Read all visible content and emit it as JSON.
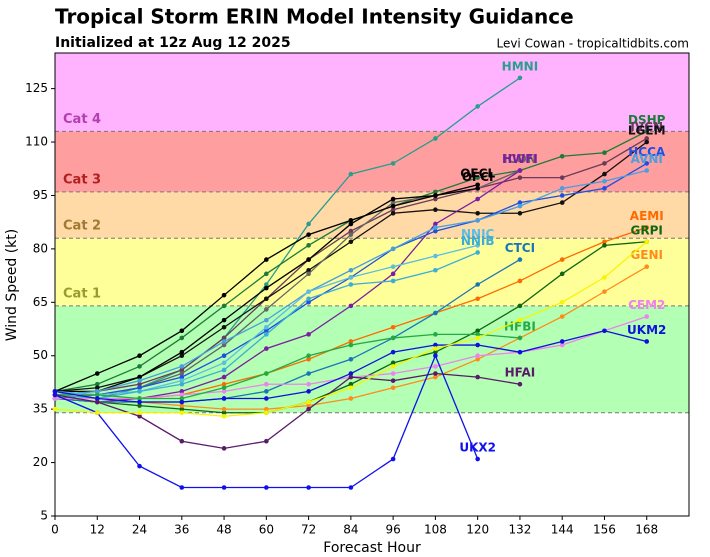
{
  "chart_data": {
    "type": "line",
    "title": "Tropical Storm ERIN Model Intensity Guidance",
    "subtitle": "Initialized at 12z Aug 12 2025",
    "credit": "Levi Cowan - tropicaltidbits.com",
    "x_label": "Forecast Hour",
    "y_label": "Wind Speed (kt)",
    "xlim": [
      0,
      180
    ],
    "ylim": [
      5,
      135
    ],
    "xticks": [
      0,
      12,
      24,
      36,
      48,
      60,
      72,
      84,
      96,
      108,
      120,
      132,
      144,
      156,
      168
    ],
    "yticks": [
      5,
      20,
      35,
      50,
      65,
      80,
      95,
      110,
      125
    ],
    "bands": [
      {
        "range": [
          34,
          64
        ],
        "color": "#b3ffb3"
      },
      {
        "label": "Cat 1",
        "range": [
          64,
          83
        ],
        "color": "#ffff99",
        "label_color": "#9a9a30"
      },
      {
        "label": "Cat 2",
        "range": [
          83,
          96
        ],
        "color": "#ffd9a6",
        "label_color": "#a07a30"
      },
      {
        "label": "Cat 3",
        "range": [
          96,
          113
        ],
        "color": "#ff9e9e",
        "label_color": "#b02020"
      },
      {
        "label": "Cat 4",
        "range": [
          113,
          135
        ],
        "color": "#ffb3ff",
        "label_color": "#b040b0"
      }
    ],
    "x": [
      0,
      12,
      24,
      36,
      48,
      60,
      72,
      84,
      96,
      108,
      120,
      132,
      144,
      156,
      168
    ],
    "series": [
      {
        "name": "HMNI",
        "color": "#2a9d8f",
        "values": [
          40,
          38,
          41,
          46,
          55,
          70,
          87,
          101,
          104,
          111,
          120,
          128,
          null,
          null,
          null
        ]
      },
      {
        "name": "DSHP",
        "color": "#1e7a3a",
        "values": [
          40,
          42,
          47,
          55,
          64,
          73,
          81,
          88,
          92,
          96,
          100,
          102,
          106,
          107,
          113
        ]
      },
      {
        "name": "IVCN",
        "color": "#6a3a5a",
        "values": [
          39,
          40,
          42,
          46,
          55,
          66,
          77,
          85,
          91,
          94,
          97,
          100,
          100,
          104,
          111
        ]
      },
      {
        "name": "LGEM",
        "color": "#111111",
        "values": [
          40,
          41,
          44,
          50,
          58,
          66,
          74,
          82,
          90,
          91,
          90,
          90,
          93,
          101,
          110
        ]
      },
      {
        "name": "ICON",
        "color": "#666666",
        "values": [
          38,
          39,
          41,
          45,
          53,
          63,
          73,
          84,
          93,
          95,
          97,
          102,
          null,
          null,
          null
        ]
      },
      {
        "name": "HWFI",
        "color": "#7a1fa2",
        "values": [
          38,
          37,
          38,
          40,
          44,
          52,
          56,
          64,
          73,
          87,
          94,
          102,
          null,
          null,
          null
        ]
      },
      {
        "name": "OFCL",
        "color": "#000000",
        "values": [
          40,
          45,
          50,
          57,
          67,
          77,
          84,
          88,
          92,
          95,
          98,
          null,
          null,
          null,
          null
        ]
      },
      {
        "name": "OFCI",
        "color": "#000000",
        "values": [
          40,
          40,
          44,
          51,
          60,
          69,
          77,
          87,
          94,
          95,
          97,
          null,
          null,
          null,
          null
        ]
      },
      {
        "name": "HCCA",
        "color": "#1f4fe0",
        "values": [
          40,
          39,
          41,
          44,
          50,
          57,
          65,
          72,
          80,
          85,
          88,
          93,
          95,
          97,
          104
        ]
      },
      {
        "name": "AVNI",
        "color": "#4a9fdf",
        "values": [
          39,
          40,
          43,
          47,
          54,
          60,
          68,
          74,
          80,
          86,
          88,
          92,
          97,
          99,
          102
        ]
      },
      {
        "name": "AEMI",
        "color": "#ff6a00",
        "values": [
          40,
          38,
          38,
          39,
          42,
          45,
          49,
          54,
          58,
          62,
          66,
          71,
          77,
          82,
          86
        ]
      },
      {
        "name": "GRPI",
        "color": "#116611",
        "values": [
          38,
          37,
          36,
          35,
          34,
          34,
          37,
          42,
          48,
          51,
          57,
          64,
          73,
          81,
          82
        ]
      },
      {
        "name": "GENI",
        "color": "#ff8c1a",
        "values": [
          38,
          37,
          37,
          36,
          35,
          35,
          36,
          38,
          41,
          44,
          49,
          55,
          61,
          68,
          75
        ]
      },
      {
        "name": "NNIC",
        "color": "#5bbde0",
        "values": [
          40,
          39,
          40,
          43,
          48,
          58,
          68,
          72,
          75,
          78,
          81,
          null,
          null,
          null,
          null
        ]
      },
      {
        "name": "NNIB",
        "color": "#3aaed8",
        "values": [
          39,
          38,
          40,
          42,
          46,
          56,
          66,
          70,
          71,
          74,
          79,
          null,
          null,
          null,
          null
        ]
      },
      {
        "name": "CTCI",
        "color": "#1a75b8",
        "values": [
          38,
          37,
          37,
          37,
          38,
          40,
          45,
          49,
          55,
          62,
          70,
          77,
          null,
          null,
          null
        ]
      },
      {
        "name": "CEM2",
        "color": "#ee82ee",
        "values": [
          38,
          38,
          38,
          39,
          40,
          42,
          42,
          44,
          45,
          47,
          50,
          51,
          53,
          57,
          61
        ]
      },
      {
        "name": "HFBI",
        "color": "#22aa44",
        "values": [
          39,
          39,
          38,
          38,
          41,
          45,
          50,
          53,
          55,
          56,
          56,
          55,
          null,
          null,
          null
        ]
      },
      {
        "name": "UKM2",
        "color": "#1010dd",
        "values": [
          40,
          38,
          37,
          37,
          38,
          38,
          40,
          45,
          51,
          53,
          53,
          51,
          54,
          57,
          54
        ]
      },
      {
        "name": "HFAI",
        "color": "#5a1a6a",
        "values": [
          39,
          37,
          33,
          26,
          24,
          26,
          35,
          44,
          43,
          45,
          44,
          42,
          null,
          null,
          null
        ]
      },
      {
        "name": "UKX2",
        "color": "#1010ee",
        "values": [
          39,
          34,
          19,
          13,
          13,
          13,
          13,
          13,
          21,
          50,
          21,
          null,
          null,
          null,
          null
        ]
      },
      {
        "color": "#f5f500",
        "values": [
          35,
          34,
          34,
          34,
          33,
          34,
          37,
          41,
          47,
          52,
          55,
          60,
          65,
          72,
          82
        ]
      }
    ]
  }
}
